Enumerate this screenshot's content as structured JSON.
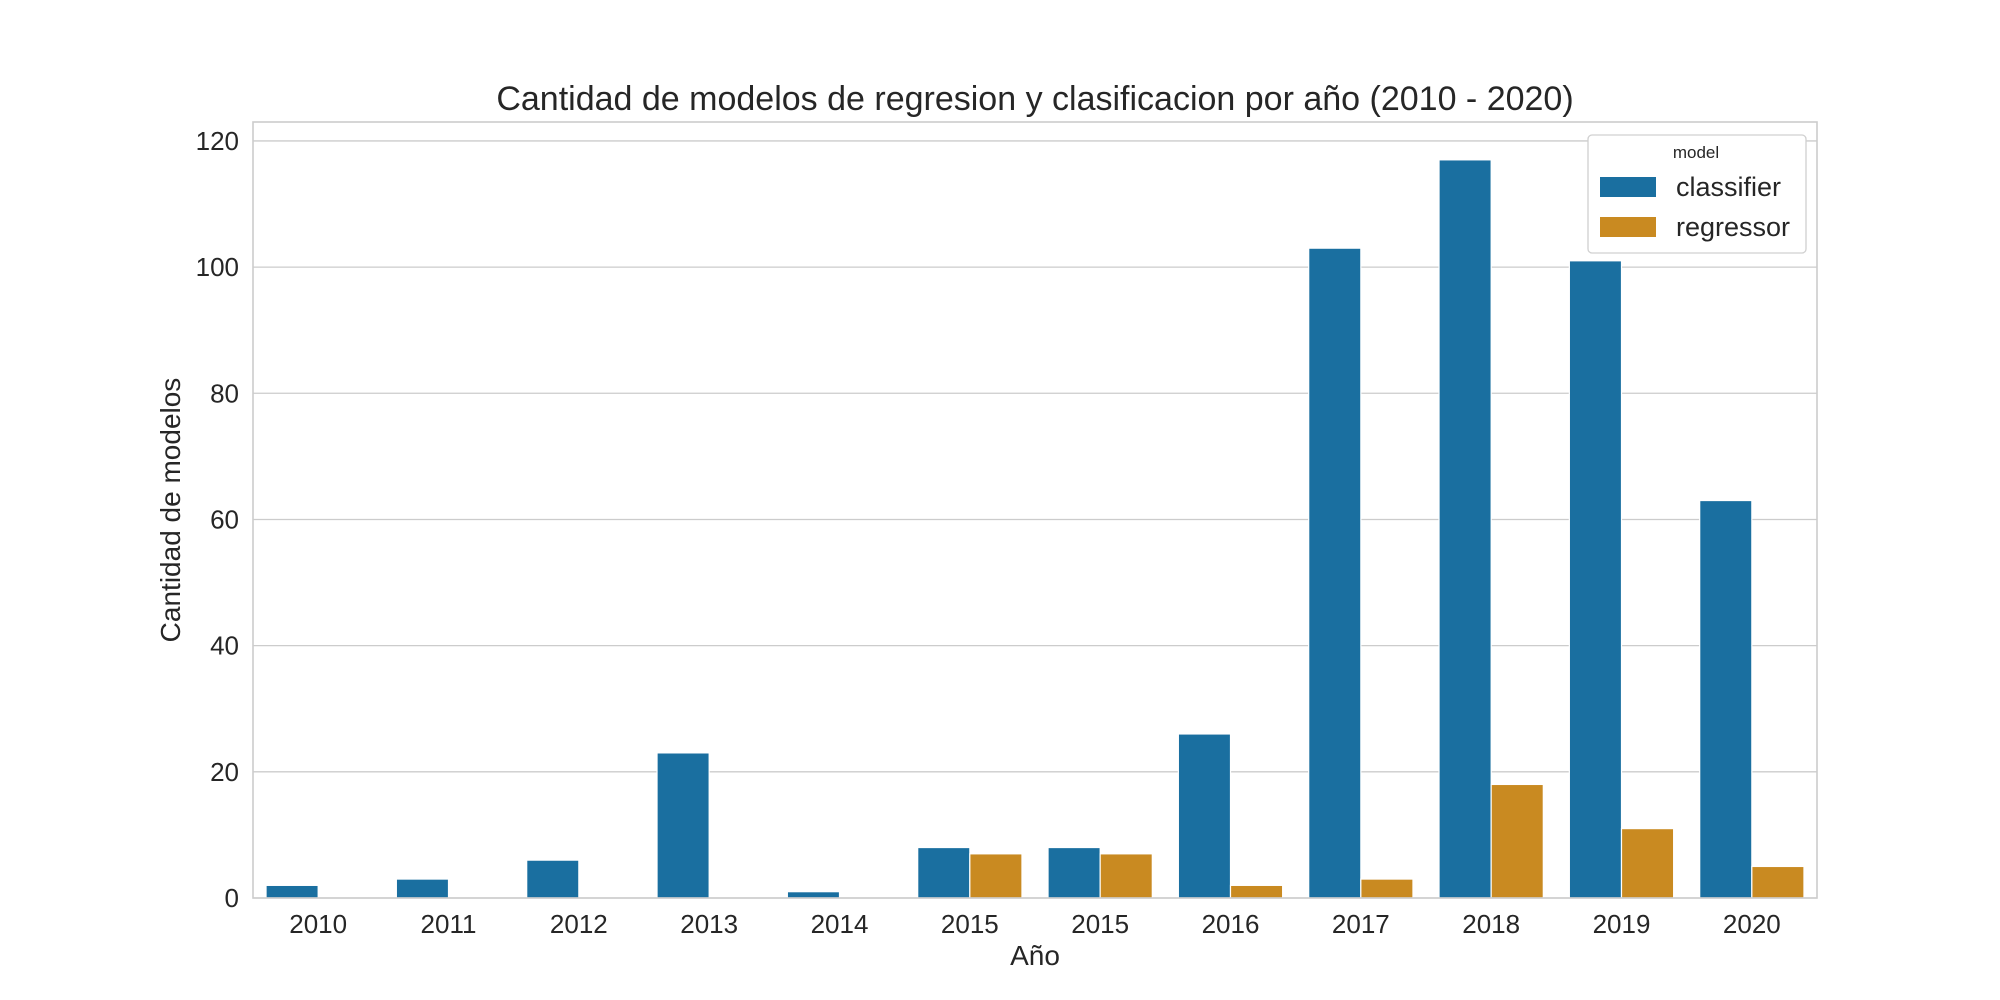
{
  "chart_data": {
    "type": "bar",
    "title": "Cantidad de modelos de regresion y clasificacion por año (2010 - 2020)",
    "xlabel": "Año",
    "ylabel": "Cantidad de modelos",
    "ylim": [
      0,
      123
    ],
    "yticks": [
      0,
      20,
      40,
      60,
      80,
      100,
      120
    ],
    "grid": "horizontal",
    "legend_title": "model",
    "legend_position": "top-right",
    "categories": [
      "2010",
      "2011",
      "2012",
      "2013",
      "2014",
      "2015",
      "2015",
      "2016",
      "2017",
      "2018",
      "2019",
      "2020"
    ],
    "series": [
      {
        "name": "classifier",
        "color": "#1a6fa0",
        "values": [
          2,
          3,
          6,
          23,
          1,
          8,
          8,
          26,
          103,
          117,
          101,
          63
        ]
      },
      {
        "name": "regressor",
        "color": "#c98a21",
        "values": [
          0,
          0,
          0,
          0,
          0,
          7,
          7,
          2,
          3,
          18,
          11,
          5
        ]
      }
    ]
  }
}
